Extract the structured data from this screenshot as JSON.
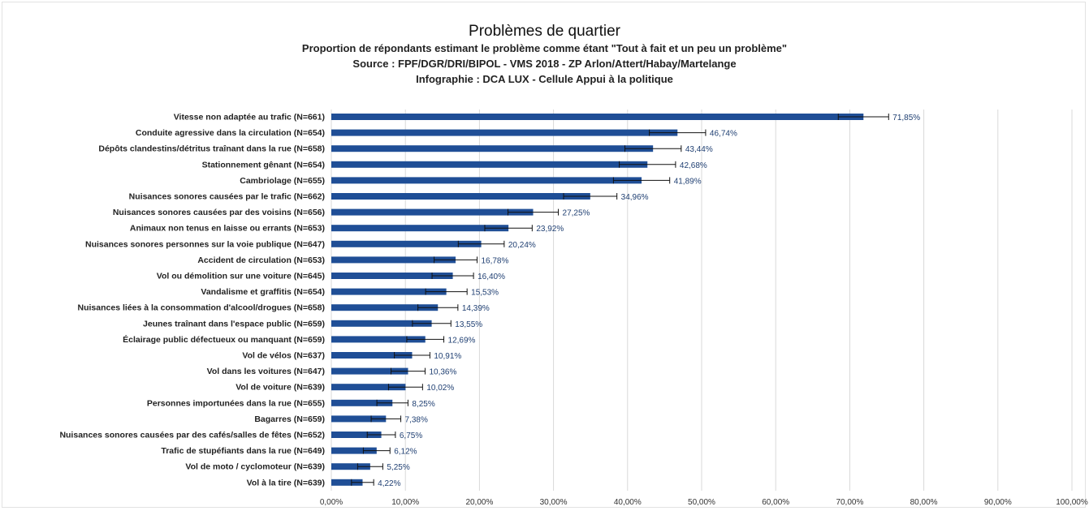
{
  "chart_data": {
    "type": "bar",
    "orientation": "horizontal",
    "title": "Problèmes de quartier",
    "subtitles": [
      "Proportion de répondants estimant le problème comme étant \"Tout à fait et un peu un problème\"",
      "Source : FPF/DGR/DRI/BIPOL - VMS 2018 - ZP Arlon/Attert/Habay/Martelange",
      "Infographie : DCA LUX - Cellule Appui à la politique"
    ],
    "categories": [
      "Vitesse non adaptée au trafic (N=661)",
      "Conduite agressive dans la circulation (N=654)",
      "Dépôts clandestins/détritus traînant dans la rue (N=658)",
      "Stationnement gênant (N=654)",
      "Cambriolage (N=655)",
      "Nuisances sonores causées par le trafic (N=662)",
      "Nuisances sonores causées par des voisins (N=656)",
      "Animaux non tenus en laisse ou errants (N=653)",
      "Nuisances sonores personnes sur la voie publique (N=647)",
      "Accident de circulation (N=653)",
      "Vol ou démolition sur une voiture (N=645)",
      "Vandalisme et graffitis (N=654)",
      "Nuisances liées à la consommation d'alcool/drogues (N=658)",
      "Jeunes traînant dans l'espace public (N=659)",
      "Éclairage public défectueux ou manquant (N=659)",
      "Vol de vélos (N=637)",
      "Vol dans les voitures (N=647)",
      "Vol de voiture (N=639)",
      "Personnes importunées dans la rue (N=655)",
      "Bagarres (N=659)",
      "Nuisances sonores causées par des cafés/salles de fêtes (N=652)",
      "Trafic de stupéfiants dans la rue (N=649)",
      "Vol de moto / cyclomoteur (N=639)",
      "Vol à la tire (N=639)"
    ],
    "values": [
      71.85,
      46.74,
      43.44,
      42.68,
      41.89,
      34.96,
      27.25,
      23.92,
      20.24,
      16.78,
      16.4,
      15.53,
      14.39,
      13.55,
      12.69,
      10.91,
      10.36,
      10.02,
      8.25,
      7.38,
      6.75,
      6.12,
      5.25,
      4.22
    ],
    "value_labels": [
      "71,85%",
      "46,74%",
      "43,44%",
      "42,68%",
      "41,89%",
      "34,96%",
      "27,25%",
      "23,92%",
      "20,24%",
      "16,78%",
      "16,40%",
      "15,53%",
      "14,39%",
      "13,55%",
      "12,69%",
      "10,91%",
      "10,36%",
      "10,02%",
      "8,25%",
      "7,38%",
      "6,75%",
      "6,12%",
      "5,25%",
      "4,22%"
    ],
    "error_margin": [
      3.4,
      3.8,
      3.8,
      3.8,
      3.8,
      3.6,
      3.4,
      3.2,
      3.1,
      2.9,
      2.8,
      2.8,
      2.7,
      2.6,
      2.5,
      2.4,
      2.3,
      2.3,
      2.1,
      2.0,
      1.9,
      1.8,
      1.7,
      1.5
    ],
    "xticks": [
      "0,00%",
      "10,00%",
      "20,00%",
      "30,00%",
      "40,00%",
      "50,00%",
      "60,00%",
      "70,00%",
      "80,00%",
      "90,00%",
      "100,00%"
    ],
    "xlim": [
      0,
      100
    ],
    "grid": true,
    "colors": {
      "bar": "#1f4e96",
      "grid": "#d9d9d9",
      "label": "#1f3f72"
    }
  }
}
